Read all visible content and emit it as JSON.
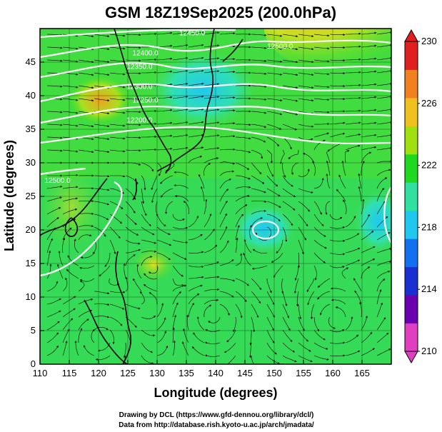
{
  "chart_data": {
    "type": "heatmap",
    "title": "GSM 18Z19Sep2025 (200.0hPa)",
    "xlabel": "Longitude (degrees)",
    "ylabel": "Latitude  (degrees)",
    "xlim": [
      110,
      170
    ],
    "ylim": [
      0,
      50
    ],
    "xticks": [
      110,
      115,
      120,
      125,
      130,
      135,
      140,
      145,
      150,
      155,
      160,
      165
    ],
    "yticks": [
      0,
      5,
      10,
      15,
      20,
      25,
      30,
      35,
      40,
      45
    ],
    "grid": true,
    "field": "temperature (K), shaded",
    "overlay": "streamlines",
    "colorbar": {
      "min": 210,
      "max": 230,
      "ticks": [
        210,
        214,
        218,
        222,
        226,
        230
      ],
      "colors": [
        "#e040c0",
        "#6a00b0",
        "#1a2fd0",
        "#1070f0",
        "#20c8f0",
        "#30e0a0",
        "#20d820",
        "#a0e010",
        "#f0c020",
        "#f08020",
        "#e02020"
      ]
    },
    "contour_labels": [
      {
        "text": "12500.0",
        "lon": 151,
        "lat": 47
      },
      {
        "text": "12450.0",
        "lon": 136,
        "lat": 49
      },
      {
        "text": "12400.0",
        "lon": 128,
        "lat": 46
      },
      {
        "text": "12350.0",
        "lon": 127,
        "lat": 44
      },
      {
        "text": "12300.0",
        "lon": 127,
        "lat": 41
      },
      {
        "text": "12250.0",
        "lon": 128,
        "lat": 39
      },
      {
        "text": "12200.0",
        "lon": 127,
        "lat": 36
      },
      {
        "text": "12500.0",
        "lon": 113,
        "lat": 27
      }
    ]
  },
  "footer": {
    "drawing": "Drawing by DCL (https://www.gfd-dennou.org/library/dcl/)",
    "data": "Data from http://database.rish.kyoto-u.ac.jp/arch/jmadata/"
  }
}
